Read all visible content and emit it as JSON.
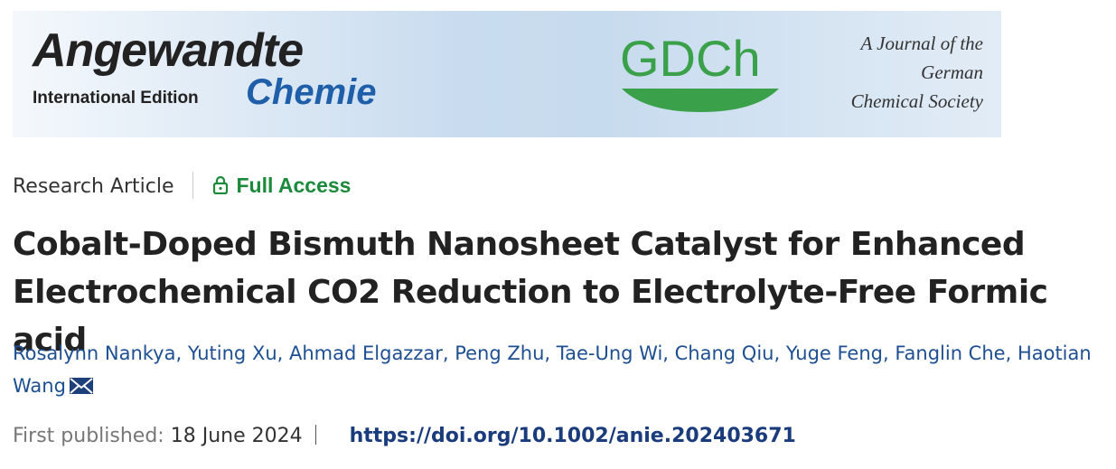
{
  "banner": {
    "journal": "Angewandte",
    "edition": "International Edition",
    "journal_sub": "Chemie",
    "society_logo": "GDCh",
    "society_text": [
      "A Journal of the",
      "German",
      "Chemical Society"
    ]
  },
  "article_type": "Research Article",
  "access": "Full Access",
  "title": "Cobalt-Doped Bismuth Nanosheet Catalyst for Enhanced Electrochemical CO2 Reduction to Electrolyte-Free Formic acid",
  "authors": [
    "Rosalynn Nankya",
    "Yuting Xu",
    "Ahmad Elgazzar",
    "Peng Zhu",
    "Tae-Ung Wi",
    "Chang Qiu",
    "Yuge Feng",
    "Fanglin Che",
    "Haotian Wang"
  ],
  "published": {
    "label": "First published:",
    "date": "18 June 2024",
    "doi": "https://doi.org/10.1002/anie.202403671"
  }
}
